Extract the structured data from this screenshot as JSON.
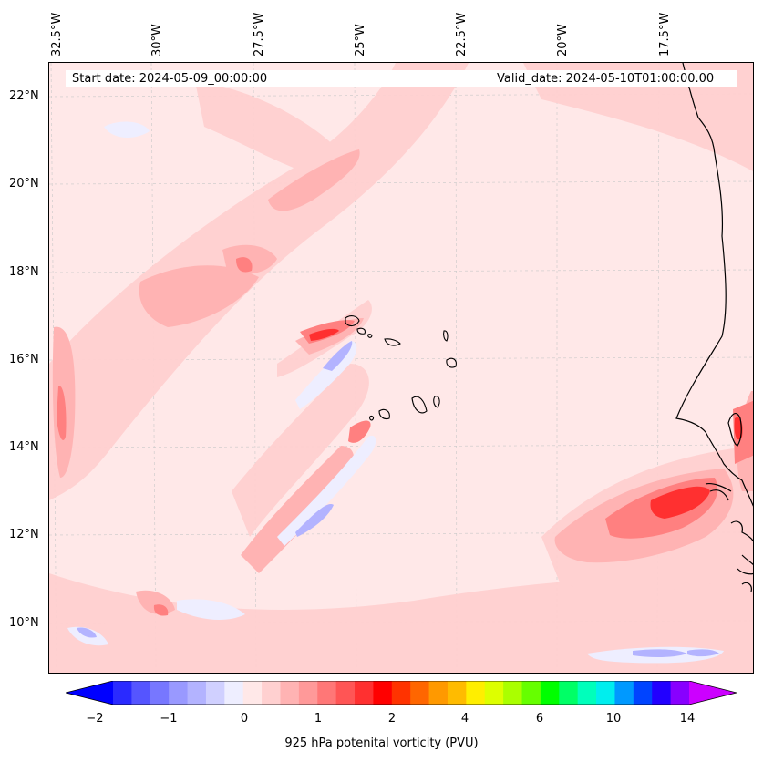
{
  "header": {
    "start_date": "Start date: 2024-05-09_00:00:00",
    "valid_date": "Valid_date: 2024-05-10T01:00:00.00"
  },
  "longitude_labels": [
    "32.5°W",
    "30°W",
    "27.5°W",
    "25°W",
    "22.5°W",
    "20°W",
    "17.5°W"
  ],
  "latitude_labels": [
    "22°N",
    "20°N",
    "18°N",
    "16°N",
    "14°N",
    "12°N",
    "10°N"
  ],
  "colorbar": {
    "ticks": [
      "−2",
      "−1",
      "0",
      "1",
      "2",
      "4",
      "6",
      "10",
      "14"
    ],
    "label": "925 hPa potenital vorticity (PVU)",
    "colors": [
      "#0000ff",
      "#2a2aff",
      "#5555ff",
      "#7777ff",
      "#9999ff",
      "#b3b3ff",
      "#d0d0ff",
      "#eeeeff",
      "#ffe8e8",
      "#ffd0d0",
      "#ffb3b3",
      "#ff9999",
      "#ff7777",
      "#ff5555",
      "#ff3030",
      "#ff0000",
      "#ff3300",
      "#ff6600",
      "#ff9900",
      "#ffbb00",
      "#ffee00",
      "#ddff00",
      "#aaff00",
      "#66ff00",
      "#00ff00",
      "#00ff66",
      "#00ffbb",
      "#00eeee",
      "#0099ff",
      "#0044ff",
      "#2200ff",
      "#8800ff",
      "#cc00ff"
    ]
  },
  "map": {
    "background_color": "#ffe8e8",
    "coastline_color": "#000000"
  }
}
